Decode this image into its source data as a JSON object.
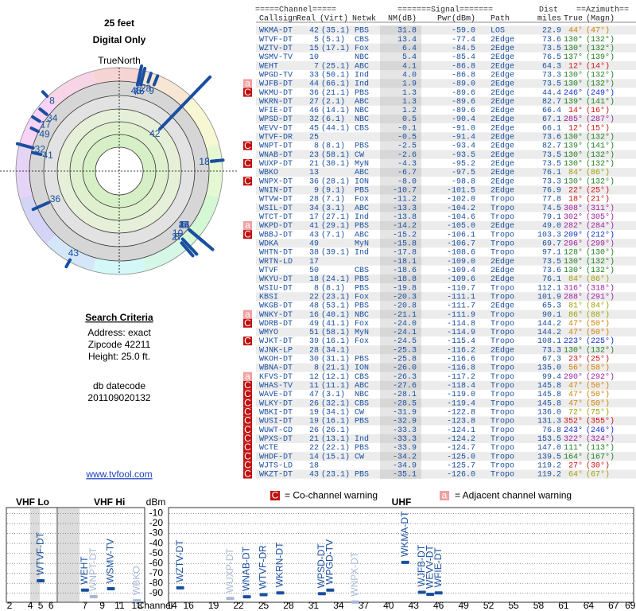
{
  "header": {
    "title": "25 feet",
    "subtitle": "Digital Only",
    "north_label": "TrueNorth",
    "north": "N"
  },
  "criteria": {
    "title": "Search Criteria",
    "lines": [
      "Address: exact",
      "Zipcode 42211",
      "Height: 25.0 ft."
    ],
    "datecode_label": "db datecode",
    "datecode": "201109020132"
  },
  "link": "www.tvfool.com",
  "table": {
    "groups": [
      "=====Channel=====",
      "=======Signal=======",
      "Dist",
      "==Azimuth=="
    ],
    "columns": [
      "Callsign",
      "Real",
      "(Virt)",
      "Netwk",
      "NM(dB)",
      "Pwr(dBm)",
      "Path",
      "miles",
      "True",
      "(Magn)"
    ],
    "rows": [
      [
        null,
        "WKMA-DT",
        "42",
        "(35.1)",
        "PBS",
        "31.8",
        "-59.0",
        "LOS",
        "22.9",
        "44°",
        "(47°)"
      ],
      [
        null,
        "WTVF-DT",
        "5",
        "(5.1)",
        "CBS",
        "13.4",
        "-77.4",
        "2Edge",
        "73.6",
        "130°",
        "(132°)"
      ],
      [
        null,
        "WZTV-DT",
        "15",
        "(17.1)",
        "Fox",
        "6.4",
        "-84.5",
        "2Edge",
        "73.5",
        "130°",
        "(132°)"
      ],
      [
        null,
        "WSMV-TV",
        "10",
        null,
        "NBC",
        "5.4",
        "-85.4",
        "2Edge",
        "76.5",
        "137°",
        "(139°)"
      ],
      [
        null,
        "WEHT",
        "7",
        "(25.1)",
        "ABC",
        "4.1",
        "-86.8",
        "2Edge",
        "64.3",
        "12°",
        "(14°)"
      ],
      [
        null,
        "WPGD-TV",
        "33",
        "(50.1)",
        "Ind",
        "4.0",
        "-86.8",
        "2Edge",
        "73.3",
        "130°",
        "(132°)"
      ],
      [
        "a",
        "WJFB-DT",
        "44",
        "(66.1)",
        "Ind",
        "1.9",
        "-89.0",
        "2Edge",
        "73.5",
        "130°",
        "(132°)"
      ],
      [
        "C",
        "WKMU-DT",
        "36",
        "(21.1)",
        "PBS",
        "1.3",
        "-89.6",
        "2Edge",
        "44.4",
        "246°",
        "(249°)"
      ],
      [
        null,
        "WKRN-DT",
        "27",
        "(2.1)",
        "ABC",
        "1.3",
        "-89.6",
        "2Edge",
        "82.7",
        "139°",
        "(141°)"
      ],
      [
        null,
        "WFIE-DT",
        "46",
        "(14.1)",
        "NBC",
        "1.2",
        "-89.6",
        "2Edge",
        "66.4",
        "14°",
        "(16°)"
      ],
      [
        null,
        "WPSD-DT",
        "32",
        "(6.1)",
        "NBC",
        "0.5",
        "-90.4",
        "2Edge",
        "67.1",
        "285°",
        "(287°)"
      ],
      [
        null,
        "WEVV-DT",
        "45",
        "(44.1)",
        "CBS",
        "-0.1",
        "-91.0",
        "2Edge",
        "66.1",
        "12°",
        "(15°)"
      ],
      [
        null,
        "WTVF-DR",
        "25",
        null,
        null,
        "-0.5",
        "-91.4",
        "2Edge",
        "73.6",
        "130°",
        "(132°)"
      ],
      [
        "C",
        "WNPT-DT",
        "8",
        "(8.1)",
        "PBS",
        "-2.5",
        "-93.4",
        "2Edge",
        "82.7",
        "139°",
        "(141°)"
      ],
      [
        null,
        "WNAB-DT",
        "23",
        "(58.1)",
        "CW",
        "-2.6",
        "-93.5",
        "2Edge",
        "73.5",
        "130°",
        "(132°)"
      ],
      [
        "C",
        "WUXP-DT",
        "21",
        "(30.1)",
        "MyN",
        "-4.3",
        "-95.2",
        "2Edge",
        "73.5",
        "130°",
        "(132°)"
      ],
      [
        null,
        "WBKO",
        "13",
        null,
        "ABC",
        "-6.7",
        "-97.5",
        "2Edge",
        "76.1",
        "84°",
        "(86°)"
      ],
      [
        "C",
        "WNPX-DT",
        "36",
        "(28.1)",
        "ION",
        "-8.0",
        "-98.8",
        "2Edge",
        "73.3",
        "130°",
        "(132°)"
      ],
      [
        null,
        "WNIN-DT",
        "9",
        "(9.1)",
        "PBS",
        "-10.7",
        "-101.5",
        "2Edge",
        "76.9",
        "22°",
        "(25°)"
      ],
      [
        null,
        "WTVW-DT",
        "28",
        "(7.1)",
        "Fox",
        "-11.2",
        "-102.0",
        "Tropo",
        "77.8",
        "18°",
        "(21°)"
      ],
      [
        null,
        "WSIL-DT",
        "34",
        "(3.1)",
        "ABC",
        "-13.3",
        "-104.2",
        "Tropo",
        "74.5",
        "308°",
        "(311°)"
      ],
      [
        null,
        "WTCT-DT",
        "17",
        "(27.1)",
        "Ind",
        "-13.8",
        "-104.6",
        "Tropo",
        "79.1",
        "302°",
        "(305°)"
      ],
      [
        "a",
        "WKPD-DT",
        "41",
        "(29.1)",
        "PBS",
        "-14.2",
        "-105.0",
        "2Edge",
        "49.0",
        "282°",
        "(284°)"
      ],
      [
        "C",
        "WBBJ-DT",
        "43",
        "(7.1)",
        "ABC",
        "-15.2",
        "-106.1",
        "Tropo",
        "103.3",
        "209°",
        "(212°)"
      ],
      [
        null,
        "WDKA",
        "49",
        null,
        "MyN",
        "-15.8",
        "-106.7",
        "Tropo",
        "69.7",
        "296°",
        "(299°)"
      ],
      [
        null,
        "WHTN-DT",
        "38",
        "(39.1)",
        "Ind",
        "-17.8",
        "-108.6",
        "Tropo",
        "97.1",
        "128°",
        "(130°)"
      ],
      [
        null,
        "WRTN-LD",
        "17",
        null,
        null,
        "-18.1",
        "-109.0",
        "2Edge",
        "73.5",
        "130°",
        "(132°)"
      ],
      [
        null,
        "WTVF",
        "50",
        null,
        "CBS",
        "-18.6",
        "-109.4",
        "2Edge",
        "73.6",
        "130°",
        "(132°)"
      ],
      [
        null,
        "WKYU-DT",
        "18",
        "(24.1)",
        "PBS",
        "-18.8",
        "-109.6",
        "2Edge",
        "76.1",
        "84°",
        "(86°)"
      ],
      [
        null,
        "WSIU-DT",
        "8",
        "(8.1)",
        "PBS",
        "-19.8",
        "-110.7",
        "Tropo",
        "112.1",
        "316°",
        "(318°)"
      ],
      [
        null,
        "KBSI",
        "22",
        "(23.1)",
        "Fox",
        "-20.3",
        "-111.1",
        "Tropo",
        "101.9",
        "288°",
        "(291°)"
      ],
      [
        null,
        "WKGB-DT",
        "48",
        "(53.1)",
        "PBS",
        "-20.8",
        "-111.7",
        "2Edge",
        "65.3",
        "81°",
        "(84°)"
      ],
      [
        "a",
        "WNKY-DT",
        "16",
        "(40.1)",
        "NBC",
        "-21.1",
        "-111.9",
        "Tropo",
        "90.1",
        "86°",
        "(88°)"
      ],
      [
        "C",
        "WDRB-DT",
        "49",
        "(41.1)",
        "Fox",
        "-24.0",
        "-114.8",
        "Tropo",
        "144.2",
        "47°",
        "(50°)"
      ],
      [
        null,
        "WMYO",
        "51",
        "(58.1)",
        "MyN",
        "-24.1",
        "-114.9",
        "Tropo",
        "144.2",
        "47°",
        "(50°)"
      ],
      [
        "C",
        "WJKT-DT",
        "39",
        "(16.1)",
        "Fox",
        "-24.5",
        "-115.4",
        "Tropo",
        "108.1",
        "223°",
        "(225°)"
      ],
      [
        null,
        "WJNK-LP",
        "28",
        "(34.1)",
        null,
        "-25.3",
        "-116.2",
        "2Edge",
        "73.3",
        "130°",
        "(132°)"
      ],
      [
        null,
        "WKOH-DT",
        "30",
        "(31.1)",
        "PBS",
        "-25.8",
        "-116.6",
        "Tropo",
        "67.3",
        "23°",
        "(25°)"
      ],
      [
        null,
        "WBNA-DT",
        "8",
        "(21.1)",
        "ION",
        "-26.0",
        "-116.8",
        "Tropo",
        "135.0",
        "56°",
        "(58°)"
      ],
      [
        "a",
        "KFVS-DT",
        "12",
        "(12.1)",
        "CBS",
        "-26.3",
        "-117.2",
        "Tropo",
        "99.4",
        "290°",
        "(292°)"
      ],
      [
        "C",
        "WHAS-TV",
        "11",
        "(11.1)",
        "ABC",
        "-27.6",
        "-118.4",
        "Tropo",
        "145.8",
        "47°",
        "(50°)"
      ],
      [
        "C",
        "WAVE-DT",
        "47",
        "(3.1)",
        "NBC",
        "-28.1",
        "-119.0",
        "Tropo",
        "145.8",
        "47°",
        "(50°)"
      ],
      [
        "C",
        "WLKY-DT",
        "26",
        "(32.1)",
        "CBS",
        "-28.5",
        "-119.4",
        "Tropo",
        "145.8",
        "47°",
        "(50°)"
      ],
      [
        "C",
        "WBKI-DT",
        "19",
        "(34.1)",
        "CW",
        "-31.9",
        "-122.8",
        "Tropo",
        "136.0",
        "72°",
        "(75°)"
      ],
      [
        "C",
        "WUSI-DT",
        "19",
        "(16.1)",
        "PBS",
        "-32.9",
        "-123.8",
        "Tropo",
        "131.3",
        "352°",
        "(355°)"
      ],
      [
        "C",
        "WUWT-CD",
        "26",
        "(26.1)",
        null,
        "-33.3",
        "-124.1",
        "Tropo",
        "76.8",
        "243°",
        "(246°)"
      ],
      [
        "C",
        "WPXS-DT",
        "21",
        "(13.1)",
        "Ind",
        "-33.3",
        "-124.2",
        "Tropo",
        "153.5",
        "322°",
        "(324°)"
      ],
      [
        "C",
        "WCTE",
        "22",
        "(22.1)",
        "PBS",
        "-33.9",
        "-124.7",
        "Tropo",
        "147.0",
        "111°",
        "(113°)"
      ],
      [
        "C",
        "WHDF-DT",
        "14",
        "(15.1)",
        "CW",
        "-34.2",
        "-125.0",
        "Tropo",
        "139.5",
        "164°",
        "(167°)"
      ],
      [
        "C",
        "WJTS-LD",
        "18",
        null,
        null,
        "-34.9",
        "-125.7",
        "Tropo",
        "119.2",
        "27°",
        "(30°)"
      ],
      [
        "C",
        "WKZT-DT",
        "43",
        "(23.1)",
        "PBS",
        "-35.1",
        "-126.0",
        "Tropo",
        "119.2",
        "64°",
        "(67°)"
      ]
    ]
  },
  "legend": {
    "co_icon": "C",
    "co_text": "= Co-channel warning",
    "adj_icon": "a",
    "adj_text": "= Adjacent channel warning"
  },
  "chart_data": [
    {
      "type": "polar",
      "rlim": [
        3,
        110
      ],
      "log_r": true,
      "color": "#1a4fa0",
      "labels": [
        42,
        7,
        45,
        28,
        46,
        9,
        8,
        34,
        17,
        49,
        41,
        32,
        36,
        43,
        13,
        18,
        5,
        15,
        10,
        33,
        44,
        27,
        8,
        25
      ],
      "azimuth": [
        44,
        12,
        12,
        18,
        14,
        22,
        316,
        308,
        302,
        296,
        282,
        285,
        246,
        209,
        84,
        84,
        130,
        130,
        137,
        130,
        130,
        139,
        139,
        130
      ],
      "dist": [
        22.9,
        64.3,
        66.1,
        77.8,
        66.4,
        76.9,
        112.1,
        74.5,
        79.1,
        69.7,
        49.0,
        67.1,
        44.4,
        103.3,
        76.1,
        76.1,
        73.6,
        73.5,
        76.5,
        73.3,
        73.5,
        82.7,
        82.7,
        73.6
      ],
      "nm": [
        31.8,
        4.1,
        -0.1,
        -11.2,
        1.2,
        -10.7,
        -19.8,
        -13.3,
        -13.8,
        -15.8,
        -14.2,
        0.5,
        1.3,
        -15.2,
        -6.7,
        -18.8,
        13.4,
        6.4,
        5.4,
        4.0,
        1.9,
        1.3,
        -2.5,
        -0.5
      ]
    },
    {
      "type": "marker",
      "ylabel": "dBm",
      "xlabel": "Channel",
      "panels": [
        {
          "title": "VHF Lo",
          "xlim": [
            1.7,
            6.6
          ]
        },
        {
          "title": "VHF Hi",
          "xlim": [
            3.8,
            13.9
          ]
        },
        {
          "title": "UHF",
          "xlim": [
            13.6,
            69.4
          ]
        }
      ],
      "ylim": [
        -99,
        -4
      ],
      "yticks": [
        -10,
        -20,
        -30,
        -40,
        -50,
        -60,
        -70,
        -80,
        -90
      ],
      "grid": true,
      "xticks": [
        2,
        4,
        5,
        6,
        7,
        9,
        11,
        13,
        14,
        16,
        19,
        22,
        25,
        28,
        31,
        34,
        37,
        40,
        43,
        46,
        49,
        52,
        55,
        58,
        61,
        64,
        67,
        69
      ],
      "x": [
        5,
        7,
        8,
        10,
        13,
        15,
        21,
        23,
        25,
        27,
        32,
        33,
        36,
        42,
        44,
        45,
        46
      ],
      "values": [
        -77.4,
        -86.8,
        -93.4,
        -85.4,
        -97.5,
        -84.5,
        -95.2,
        -93.5,
        -91.4,
        -89.6,
        -90.4,
        -86.8,
        -98.8,
        -59.0,
        -89.0,
        -91.0,
        -89.6
      ],
      "labels": [
        "WTVF-DT",
        "WEHT",
        "WNPT-DT",
        "WSMV-TV",
        "WBKO",
        "WZTV-DT",
        "WUXP-DT",
        "WNAB-DT",
        "WTVF-DR",
        "WKRN-DT",
        "WPSD-DT",
        "WPGD-TV",
        "WNPX-DT",
        "WKMA-DT",
        "WJFB-DT",
        "WEVV-DT",
        "WFIE-DT"
      ],
      "colors": [
        "#1a4fa0",
        "#1a4fa0",
        "#a8b8d8",
        "#1a4fa0",
        "#a8b8d8",
        "#1a4fa0",
        "#a8b8d8",
        "#1a4fa0",
        "#1a4fa0",
        "#1a4fa0",
        "#1a4fa0",
        "#1a4fa0",
        "#a8b8d8",
        "#1a4fa0",
        "#1a4fa0",
        "#1a4fa0",
        "#1a4fa0"
      ]
    }
  ]
}
